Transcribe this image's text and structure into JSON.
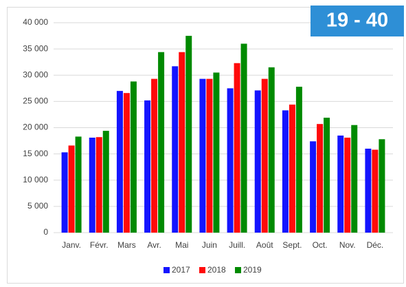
{
  "badge": "19 - 40",
  "chart_data": {
    "type": "bar",
    "categories": [
      "Janv.",
      "Févr.",
      "Mars",
      "Avr.",
      "Mai",
      "Juin",
      "Juill.",
      "Août",
      "Sept.",
      "Oct.",
      "Nov.",
      "Déc."
    ],
    "series": [
      {
        "name": "2017",
        "color": "#1414ff",
        "values": [
          15300,
          18100,
          27000,
          25200,
          31700,
          29300,
          27500,
          27100,
          23300,
          17400,
          18500,
          16000
        ]
      },
      {
        "name": "2018",
        "color": "#ff0a0a",
        "values": [
          16600,
          18200,
          26600,
          29300,
          34400,
          29300,
          32300,
          29300,
          24400,
          20700,
          18100,
          15800
        ]
      },
      {
        "name": "2019",
        "color": "#008a00",
        "values": [
          18300,
          19400,
          28800,
          34400,
          37500,
          30500,
          36000,
          31500,
          27800,
          21900,
          20500,
          17800
        ]
      }
    ],
    "ylim": [
      0,
      40000
    ],
    "yticks": [
      0,
      {
        "value": 5000,
        "label": "5 000"
      },
      {
        "value": 10000,
        "label": "10 000"
      },
      {
        "value": 15000,
        "label": "15 000"
      },
      {
        "value": 20000,
        "label": "20 000"
      },
      {
        "value": 25000,
        "label": "25 000"
      },
      {
        "value": 30000,
        "label": "30 000"
      },
      {
        "value": 35000,
        "label": "35 000"
      },
      {
        "value": 40000,
        "label": "40 000"
      }
    ],
    "grid": true,
    "legend": "bottom"
  }
}
